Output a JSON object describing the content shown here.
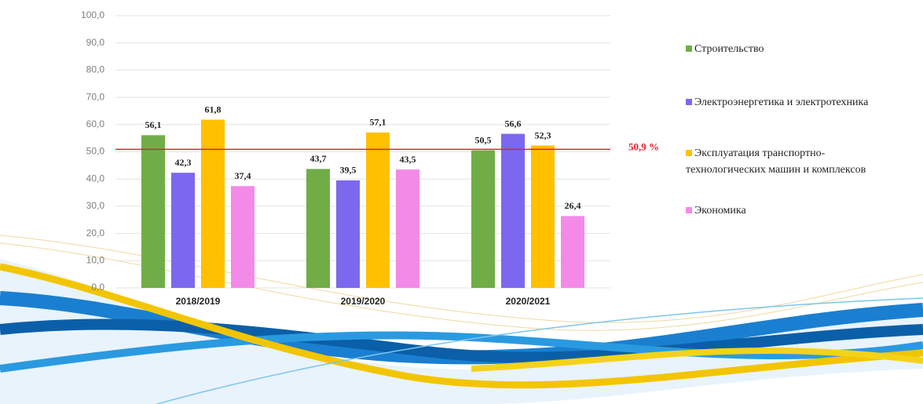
{
  "chart_data": {
    "type": "bar",
    "categories": [
      "2018/2019",
      "2019/2020",
      "2020/2021"
    ],
    "series": [
      {
        "name": "Строительство",
        "color": "#70ad47",
        "values": [
          56.1,
          43.7,
          50.5
        ],
        "value_labels": [
          "56,1",
          "43,7",
          "50,5"
        ]
      },
      {
        "name": "Электроэнергетика и электротехника",
        "color": "#7b68ee",
        "values": [
          42.3,
          39.5,
          56.6
        ],
        "value_labels": [
          "42,3",
          "39,5",
          "56,6"
        ]
      },
      {
        "name": "Эксплуатация транспортно-технологических машин и комплексов",
        "color": "#ffc000",
        "values": [
          61.8,
          57.1,
          52.3
        ],
        "value_labels": [
          "61,8",
          "57,1",
          "52,3"
        ]
      },
      {
        "name": "Экономика",
        "color": "#f48ae8",
        "values": [
          37.4,
          43.5,
          26.4
        ],
        "value_labels": [
          "37,4",
          "43,5",
          "26,4"
        ]
      }
    ],
    "ylim": [
      0,
      100
    ],
    "yticks": [
      {
        "value": 0,
        "label": "0,0"
      },
      {
        "value": 10,
        "label": "10,0"
      },
      {
        "value": 20,
        "label": "20,0"
      },
      {
        "value": 30,
        "label": "30,0"
      },
      {
        "value": 40,
        "label": "40,0"
      },
      {
        "value": 50,
        "label": "50,0"
      },
      {
        "value": 60,
        "label": "60,0"
      },
      {
        "value": 70,
        "label": "70,0"
      },
      {
        "value": 80,
        "label": "80,0"
      },
      {
        "value": 90,
        "label": "90,0"
      },
      {
        "value": 100,
        "label": "100,0"
      }
    ],
    "grid": true,
    "reference_line": {
      "value": 50.9,
      "label": "50,9 %",
      "color": "#e8202a"
    },
    "legend": "right"
  }
}
